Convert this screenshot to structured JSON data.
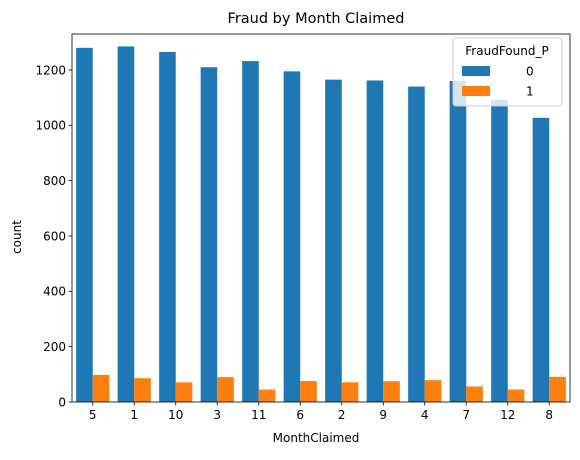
{
  "chart_data": {
    "type": "bar",
    "title": "Fraud by Month Claimed",
    "xlabel": "MonthClaimed",
    "ylabel": "count",
    "categories": [
      "5",
      "1",
      "10",
      "3",
      "11",
      "6",
      "2",
      "9",
      "4",
      "7",
      "12",
      "8"
    ],
    "series": [
      {
        "name": "0",
        "color": "#1f77b4",
        "values": [
          1280,
          1285,
          1265,
          1210,
          1232,
          1195,
          1165,
          1162,
          1140,
          1160,
          1092,
          1027
        ]
      },
      {
        "name": "1",
        "color": "#ff7f0e",
        "values": [
          98,
          86,
          71,
          90,
          45,
          76,
          71,
          75,
          79,
          56,
          45,
          91
        ]
      }
    ],
    "ylim": [
      0,
      1330
    ],
    "yticks": [
      0,
      200,
      400,
      600,
      800,
      1000,
      1200
    ],
    "legend": {
      "title": "FraudFound_P",
      "placement": "top-right"
    },
    "grid": false
  }
}
